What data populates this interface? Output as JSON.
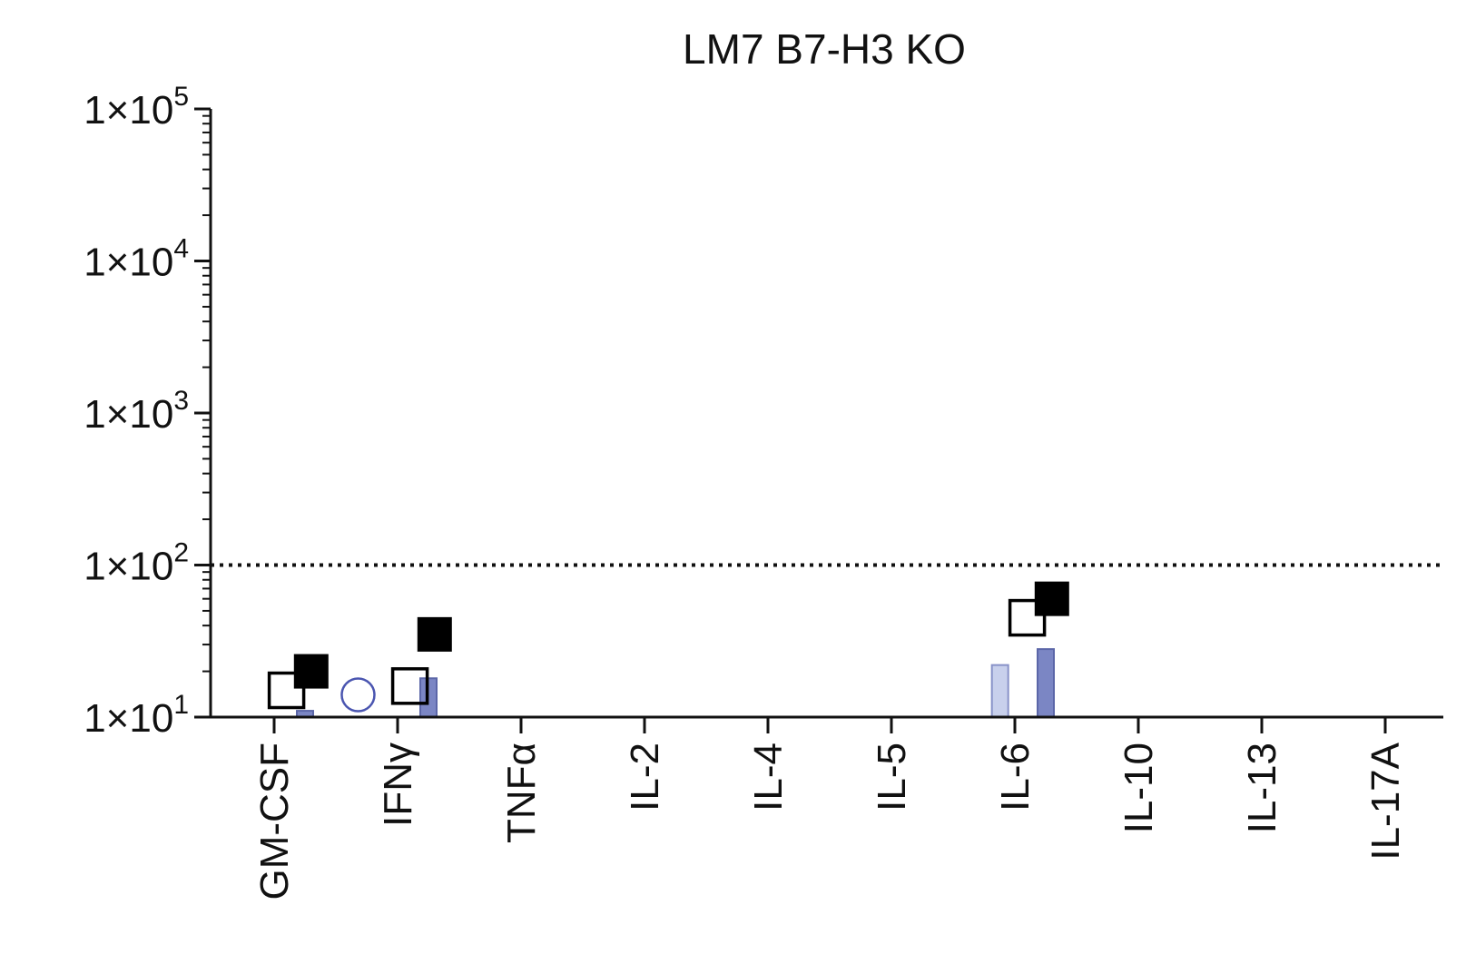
{
  "chart_data": {
    "type": "scatter",
    "title": "LM7 B7-H3 KO",
    "xlabel": "",
    "ylabel": "",
    "y_scale": "log",
    "ylim": [
      10,
      100000
    ],
    "grid": false,
    "y_ticks": [
      {
        "value": 10,
        "mant": "1×10",
        "exp": "1"
      },
      {
        "value": 100,
        "mant": "1×10",
        "exp": "2"
      },
      {
        "value": 1000,
        "mant": "1×10",
        "exp": "3"
      },
      {
        "value": 10000,
        "mant": "1×10",
        "exp": "4"
      },
      {
        "value": 100000,
        "mant": "1×10",
        "exp": "5"
      }
    ],
    "categories": [
      "GM-CSF",
      "IFNγ",
      "TNFα",
      "IL-2",
      "IL-4",
      "IL-5",
      "IL-6",
      "IL-10",
      "IL-13",
      "IL-17A"
    ],
    "reference_line": {
      "y": 100,
      "style": "dotted"
    },
    "series": [
      {
        "marker": "bar",
        "color": "#c8d0ec",
        "stroke": "#8892c8",
        "offset": -0.12,
        "values": [
          null,
          null,
          null,
          null,
          null,
          null,
          22,
          null,
          null,
          null
        ]
      },
      {
        "marker": "bar",
        "color": "#7b86c4",
        "stroke": "#5b66a8",
        "offset": 0.25,
        "values": [
          11,
          18,
          null,
          null,
          null,
          null,
          28,
          null,
          null,
          null
        ]
      },
      {
        "marker": "open-square",
        "color": "#000000",
        "offset": 0.1,
        "values": [
          15,
          16,
          null,
          null,
          null,
          null,
          45,
          null,
          null,
          null
        ]
      },
      {
        "marker": "filled-square",
        "color": "#000000",
        "offset": 0.3,
        "values": [
          20,
          35,
          null,
          null,
          null,
          null,
          60,
          null,
          null,
          null
        ]
      },
      {
        "marker": "open-circle",
        "color": "#4a55b0",
        "offset": 0.68,
        "values": [
          14,
          null,
          null,
          null,
          null,
          null,
          null,
          null,
          null,
          null
        ]
      }
    ]
  }
}
